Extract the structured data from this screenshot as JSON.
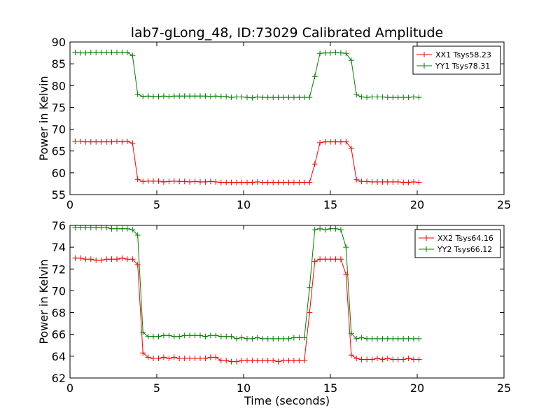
{
  "title": "lab7-gLong_48, ID:73029 Calibrated Amplitude",
  "xlabel": "Time (seconds)",
  "chart_data": [
    {
      "type": "line",
      "ylabel": "Power in Kelvin",
      "xlim": [
        0,
        25
      ],
      "ylim": [
        55,
        90
      ],
      "xticks": [
        "0",
        "5",
        "10",
        "15",
        "20",
        "25"
      ],
      "yticks": [
        "55",
        "60",
        "65",
        "70",
        "75",
        "80",
        "85",
        "90"
      ],
      "legend_position": "top-right",
      "series": [
        {
          "name": "XX1 Tsys58.23",
          "color": "#ff0000",
          "x": [
            0.3,
            0.6,
            0.9,
            1.2,
            1.5,
            1.8,
            2.1,
            2.4,
            2.7,
            3.0,
            3.3,
            3.6,
            3.9,
            4.2,
            4.5,
            4.8,
            5.1,
            5.4,
            5.7,
            6.0,
            6.3,
            6.6,
            6.9,
            7.2,
            7.5,
            7.8,
            8.1,
            8.4,
            8.7,
            9.0,
            9.3,
            9.6,
            9.9,
            10.2,
            10.5,
            10.8,
            11.1,
            11.4,
            11.7,
            12.0,
            12.3,
            12.6,
            12.9,
            13.2,
            13.5,
            13.8,
            14.1,
            14.4,
            14.7,
            15.0,
            15.3,
            15.6,
            15.9,
            16.2,
            16.5,
            16.8,
            17.1,
            17.4,
            17.7,
            18.0,
            18.3,
            18.6,
            18.9,
            19.2,
            19.5,
            19.8,
            20.1
          ],
          "y": [
            67.2,
            67.2,
            67.1,
            67.1,
            67.1,
            67.1,
            67.1,
            67.1,
            67.2,
            67.1,
            67.2,
            66.8,
            58.5,
            58.0,
            58.1,
            58.1,
            58.1,
            57.9,
            58.0,
            58.1,
            58.0,
            58.0,
            57.9,
            58.0,
            57.9,
            57.9,
            58.0,
            57.9,
            57.8,
            57.8,
            57.8,
            57.8,
            57.8,
            57.8,
            57.8,
            57.9,
            57.8,
            57.8,
            57.8,
            57.8,
            57.8,
            57.8,
            57.8,
            57.8,
            57.8,
            57.8,
            62.0,
            66.9,
            67.1,
            67.1,
            67.1,
            67.1,
            67.1,
            65.6,
            58.4,
            58.0,
            58.0,
            57.9,
            57.9,
            57.9,
            57.9,
            57.9,
            57.9,
            57.8,
            57.8,
            57.9,
            57.8
          ]
        },
        {
          "name": "YY1 Tsys78.31",
          "color": "#008000",
          "x": [
            0.3,
            0.6,
            0.9,
            1.2,
            1.5,
            1.8,
            2.1,
            2.4,
            2.7,
            3.0,
            3.3,
            3.6,
            3.9,
            4.2,
            4.5,
            4.8,
            5.1,
            5.4,
            5.7,
            6.0,
            6.3,
            6.6,
            6.9,
            7.2,
            7.5,
            7.8,
            8.1,
            8.4,
            8.7,
            9.0,
            9.3,
            9.6,
            9.9,
            10.2,
            10.5,
            10.8,
            11.1,
            11.4,
            11.7,
            12.0,
            12.3,
            12.6,
            12.9,
            13.2,
            13.5,
            13.8,
            14.1,
            14.4,
            14.7,
            15.0,
            15.3,
            15.6,
            15.9,
            16.2,
            16.5,
            16.8,
            17.1,
            17.4,
            17.7,
            18.0,
            18.3,
            18.6,
            18.9,
            19.2,
            19.5,
            19.8,
            20.1
          ],
          "y": [
            87.6,
            87.5,
            87.5,
            87.6,
            87.6,
            87.6,
            87.6,
            87.6,
            87.6,
            87.6,
            87.6,
            86.9,
            78.0,
            77.5,
            77.6,
            77.5,
            77.5,
            77.6,
            77.5,
            77.6,
            77.6,
            77.6,
            77.6,
            77.6,
            77.6,
            77.6,
            77.5,
            77.6,
            77.5,
            77.5,
            77.3,
            77.4,
            77.4,
            77.3,
            77.2,
            77.4,
            77.3,
            77.3,
            77.3,
            77.3,
            77.3,
            77.3,
            77.3,
            77.3,
            77.3,
            77.3,
            82.1,
            87.4,
            87.5,
            87.5,
            87.6,
            87.5,
            87.4,
            85.8,
            77.9,
            77.4,
            77.3,
            77.4,
            77.4,
            77.4,
            77.3,
            77.3,
            77.3,
            77.3,
            77.3,
            77.4,
            77.3
          ]
        }
      ]
    },
    {
      "type": "line",
      "xlabel": "Time (seconds)",
      "ylabel": "Power in Kelvin",
      "xlim": [
        0,
        25
      ],
      "ylim": [
        62,
        76
      ],
      "xticks": [
        "0",
        "5",
        "10",
        "15",
        "20",
        "25"
      ],
      "yticks": [
        "62",
        "64",
        "66",
        "68",
        "70",
        "72",
        "74",
        "76"
      ],
      "legend_position": "top-right",
      "series": [
        {
          "name": "XX2 Tsys64.16",
          "color": "#ff0000",
          "x": [
            0.3,
            0.6,
            0.9,
            1.2,
            1.5,
            1.8,
            2.1,
            2.4,
            2.7,
            3.0,
            3.3,
            3.6,
            3.9,
            4.2,
            4.5,
            4.8,
            5.1,
            5.4,
            5.7,
            6.0,
            6.3,
            6.6,
            6.9,
            7.2,
            7.5,
            7.8,
            8.1,
            8.4,
            8.7,
            9.0,
            9.3,
            9.6,
            9.9,
            10.2,
            10.5,
            10.8,
            11.1,
            11.4,
            11.7,
            12.0,
            12.3,
            12.6,
            12.9,
            13.2,
            13.5,
            13.8,
            14.1,
            14.4,
            14.7,
            15.0,
            15.3,
            15.6,
            15.9,
            16.2,
            16.5,
            16.8,
            17.1,
            17.4,
            17.7,
            18.0,
            18.3,
            18.6,
            18.9,
            19.2,
            19.5,
            19.8,
            20.1
          ],
          "y": [
            73.0,
            73.0,
            72.9,
            72.9,
            72.8,
            72.8,
            72.9,
            72.9,
            72.9,
            73.0,
            72.9,
            72.9,
            72.4,
            64.3,
            63.9,
            63.8,
            63.8,
            63.9,
            63.8,
            63.9,
            63.8,
            63.8,
            63.8,
            63.8,
            63.8,
            63.8,
            63.9,
            63.9,
            63.6,
            63.6,
            63.5,
            63.5,
            63.6,
            63.6,
            63.6,
            63.6,
            63.6,
            63.6,
            63.6,
            63.5,
            63.6,
            63.6,
            63.6,
            63.6,
            63.6,
            68.0,
            72.7,
            72.9,
            72.9,
            72.9,
            72.9,
            72.9,
            71.5,
            64.1,
            63.8,
            63.7,
            63.7,
            63.7,
            63.8,
            63.7,
            63.8,
            63.7,
            63.7,
            63.7,
            63.8,
            63.7,
            63.7
          ]
        },
        {
          "name": "YY2 Tsys66.12",
          "color": "#008000",
          "x": [
            0.3,
            0.6,
            0.9,
            1.2,
            1.5,
            1.8,
            2.1,
            2.4,
            2.7,
            3.0,
            3.3,
            3.6,
            3.9,
            4.2,
            4.5,
            4.8,
            5.1,
            5.4,
            5.7,
            6.0,
            6.3,
            6.6,
            6.9,
            7.2,
            7.5,
            7.8,
            8.1,
            8.4,
            8.7,
            9.0,
            9.3,
            9.6,
            9.9,
            10.2,
            10.5,
            10.8,
            11.1,
            11.4,
            11.7,
            12.0,
            12.3,
            12.6,
            12.9,
            13.2,
            13.5,
            13.8,
            14.1,
            14.4,
            14.7,
            15.0,
            15.3,
            15.6,
            15.9,
            16.2,
            16.5,
            16.8,
            17.1,
            17.4,
            17.7,
            18.0,
            18.3,
            18.6,
            18.9,
            19.2,
            19.5,
            19.8,
            20.1
          ],
          "y": [
            75.8,
            75.8,
            75.8,
            75.8,
            75.8,
            75.8,
            75.8,
            75.7,
            75.7,
            75.7,
            75.7,
            75.6,
            75.1,
            66.2,
            65.8,
            65.8,
            65.8,
            65.9,
            65.9,
            65.8,
            65.8,
            65.9,
            65.9,
            65.9,
            65.9,
            65.8,
            65.9,
            65.9,
            65.8,
            65.8,
            65.8,
            65.6,
            65.7,
            65.6,
            65.6,
            65.7,
            65.6,
            65.6,
            65.6,
            65.6,
            65.6,
            65.6,
            65.7,
            65.7,
            65.7,
            70.3,
            75.6,
            75.7,
            75.6,
            75.7,
            75.7,
            75.6,
            74.0,
            66.1,
            65.6,
            65.7,
            65.6,
            65.6,
            65.6,
            65.6,
            65.6,
            65.6,
            65.6,
            65.6,
            65.6,
            65.6,
            65.6
          ]
        }
      ]
    }
  ]
}
